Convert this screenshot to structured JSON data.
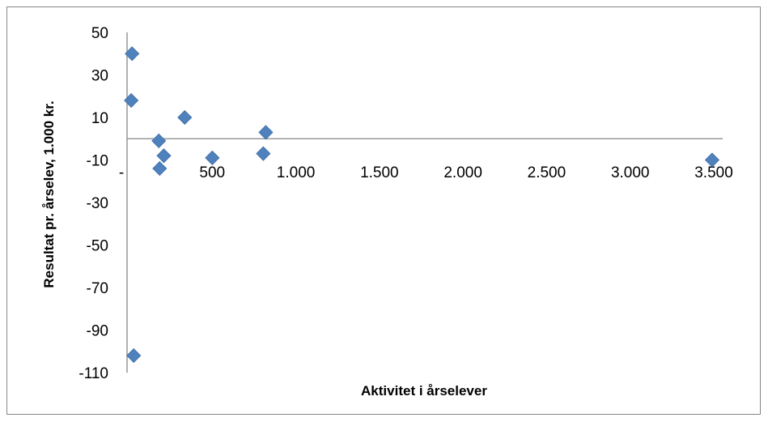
{
  "chart_data": {
    "type": "scatter",
    "title": "",
    "xlabel": "Aktivitet i årselever",
    "ylabel": "Resultat pr. årselev, 1.000 kr.",
    "xlim": [
      0,
      3500
    ],
    "ylim": [
      -110,
      50
    ],
    "x_ticks": [
      0,
      500,
      1000,
      1500,
      2000,
      2500,
      3000,
      3500
    ],
    "x_tick_labels": [
      "-",
      "500",
      "1.000",
      "1.500",
      "2.000",
      "2.500",
      "3.000",
      "3.500"
    ],
    "y_ticks": [
      50,
      30,
      10,
      -10,
      -30,
      -50,
      -70,
      -90,
      -110
    ],
    "y_tick_labels": [
      "50",
      "30",
      "10",
      "-10",
      "-30",
      "-50",
      "-70",
      "-90",
      "-110"
    ],
    "grid": false,
    "legend": "none",
    "marker": "diamond",
    "marker_color": "#4F81BD",
    "axis_color": "#868686",
    "series": [
      {
        "points": [
          {
            "x": 30,
            "y": 40
          },
          {
            "x": 25,
            "y": 18
          },
          {
            "x": 40,
            "y": -102
          },
          {
            "x": 190,
            "y": -1
          },
          {
            "x": 220,
            "y": -8
          },
          {
            "x": 195,
            "y": -14
          },
          {
            "x": 345,
            "y": 10
          },
          {
            "x": 510,
            "y": -9
          },
          {
            "x": 815,
            "y": -7
          },
          {
            "x": 830,
            "y": 3
          },
          {
            "x": 3500,
            "y": -10
          }
        ]
      }
    ]
  }
}
